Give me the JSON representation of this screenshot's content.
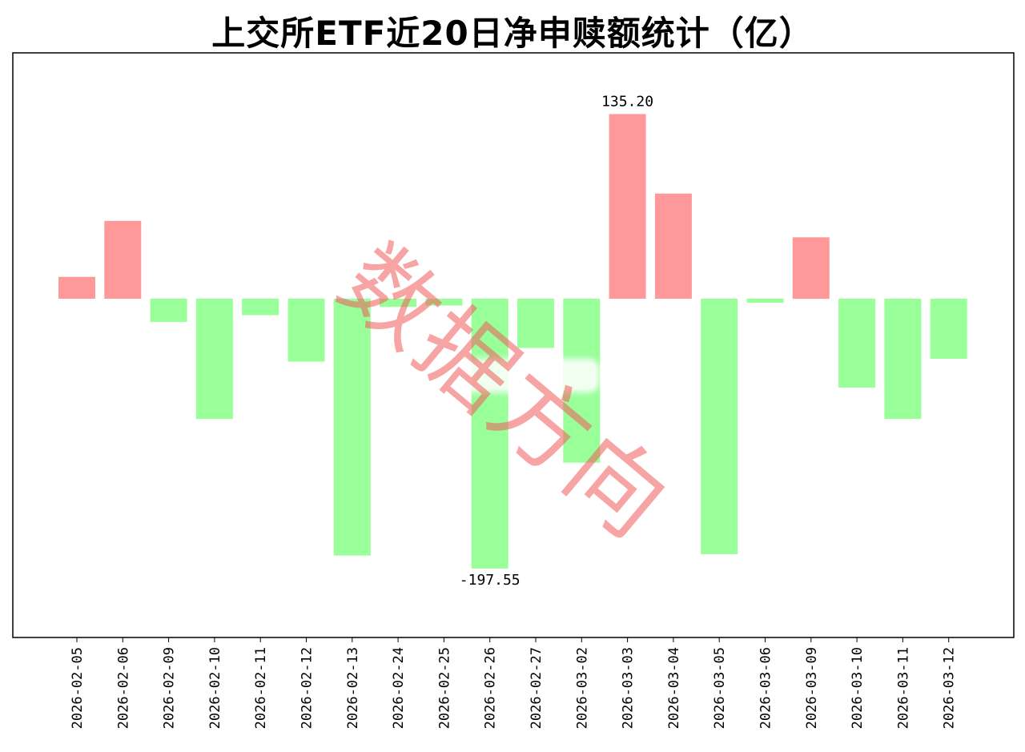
{
  "title": "上交所ETF近20日净申赎额统计（亿）",
  "watermark": "数据方向",
  "colors": {
    "positive": "#ff9999",
    "negative": "#99ff99",
    "axis": "#000000"
  },
  "chart_data": {
    "type": "bar",
    "title": "上交所ETF近20日净申赎额统计（亿）",
    "categories": [
      "2026-02-05",
      "2026-02-06",
      "2026-02-09",
      "2026-02-10",
      "2026-02-11",
      "2026-02-12",
      "2026-02-13",
      "2026-02-24",
      "2026-02-25",
      "2026-02-26",
      "2026-02-27",
      "2026-03-02",
      "2026-03-03",
      "2026-03-04",
      "2026-03-05",
      "2026-03-06",
      "2026-03-09",
      "2026-03-10",
      "2026-03-11",
      "2026-03-12"
    ],
    "values": [
      16,
      57,
      -17,
      -88,
      -12,
      -46,
      -188,
      -6,
      -5,
      -197.55,
      -36,
      -120,
      135.2,
      77,
      -187,
      -3,
      45,
      -65,
      -88,
      -44
    ],
    "data_labels": [
      {
        "category": "2026-03-03",
        "text": "135.20"
      },
      {
        "category": "2026-02-26",
        "text": "-197.55"
      }
    ],
    "ylim": [
      -248,
      180
    ],
    "grid": false,
    "legend": "none",
    "xlabel": "",
    "ylabel": ""
  }
}
